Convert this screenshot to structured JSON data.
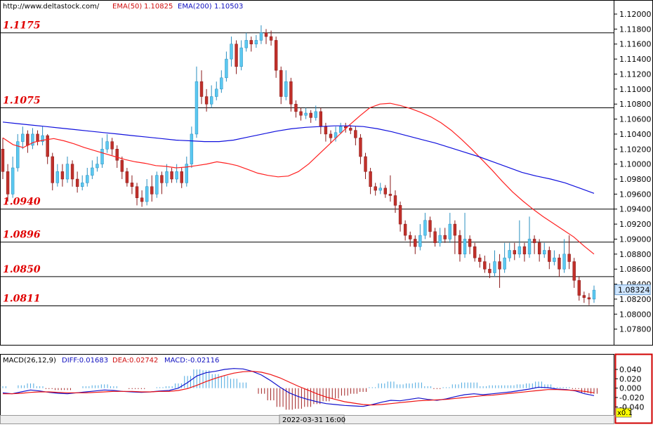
{
  "header": {
    "url": "http://www.deltastock.com/",
    "ema50_label": "EMA(50)",
    "ema50_value": "1.10825",
    "ema200_label": "EMA(200)",
    "ema200_value": "1.10503"
  },
  "macd_header": {
    "name": "MACD(26,12,9)",
    "diff": "DIFF:0.01683",
    "dea": "DEA:0.02742",
    "macd": "MACD:-0.02116"
  },
  "footer": {
    "timestamp": "2022-03-31 16:00",
    "zoom": "x0.1"
  },
  "current_price": "1.08324",
  "colors": {
    "up": "#5bc8f0",
    "down": "#c0302a",
    "ema50": "#ff2020",
    "ema200": "#1010dd",
    "diff": "#1010cc",
    "dea": "#ee1010",
    "level": "#e00000",
    "hist_pos": "#4aa8e0",
    "hist_neg": "#a02020"
  },
  "chart_data": [
    {
      "type": "candlestick",
      "ylim": [
        1.076,
        1.1215
      ],
      "y_ticks": [
        "1.12000",
        "1.11800",
        "1.11600",
        "1.11400",
        "1.11200",
        "1.11000",
        "1.10800",
        "1.10600",
        "1.10400",
        "1.10200",
        "1.10000",
        "1.09800",
        "1.09600",
        "1.09400",
        "1.09200",
        "1.09000",
        "1.08800",
        "1.08600",
        "1.08400",
        "1.08200",
        "1.08000",
        "1.07800"
      ],
      "levels": [
        "1.1175",
        "1.1075",
        "1.0940",
        "1.0896",
        "1.0850",
        "1.0811"
      ],
      "last_price": 1.08324,
      "series": [
        {
          "name": "EMA(50)",
          "values": [
            1.1035,
            1.1026,
            1.1022,
            1.1029,
            1.1032,
            1.1034,
            1.1031,
            1.1027,
            1.1022,
            1.1018,
            1.1014,
            1.101,
            1.1006,
            1.1003,
            1.1001,
            1.0998,
            1.0997,
            1.0995,
            1.0996,
            1.0998,
            1.1,
            1.1003,
            1.1001,
            1.0998,
            1.0993,
            1.0988,
            1.0985,
            1.0983,
            1.0984,
            1.099,
            1.1,
            1.1013,
            1.1026,
            1.1039,
            1.1052,
            1.1064,
            1.1075,
            1.108,
            1.1081,
            1.1078,
            1.1074,
            1.1069,
            1.1063,
            1.1055,
            1.1045,
            1.1033,
            1.102,
            1.1006,
            1.0992,
            1.0977,
            1.0963,
            1.0951,
            1.094,
            1.093,
            1.0921,
            1.0912,
            1.0903,
            1.0891,
            1.088
          ]
        },
        {
          "name": "EMA(200)",
          "values": [
            1.1056,
            1.1054,
            1.1052,
            1.105,
            1.1048,
            1.1046,
            1.1044,
            1.1042,
            1.104,
            1.1038,
            1.1036,
            1.1034,
            1.1032,
            1.1031,
            1.103,
            1.103,
            1.1032,
            1.1036,
            1.104,
            1.1044,
            1.1047,
            1.1049,
            1.105,
            1.1051,
            1.1051,
            1.105,
            1.1047,
            1.1043,
            1.1038,
            1.1033,
            1.1028,
            1.1022,
            1.1016,
            1.101,
            1.1003,
            1.0996,
            1.0989,
            1.0984,
            1.098,
            1.0975,
            1.0968,
            1.0961
          ]
        }
      ],
      "candles": [
        [
          1.102,
          1.099,
          1.1035,
          1.098
        ],
        [
          1.099,
          1.096,
          1.1,
          1.095
        ],
        [
          1.096,
          1.0995,
          1.101,
          1.0955
        ],
        [
          1.0995,
          1.103,
          1.104,
          1.099
        ],
        [
          1.103,
          1.104,
          1.105,
          1.102
        ],
        [
          1.104,
          1.1025,
          1.1045,
          1.1015
        ],
        [
          1.1025,
          1.104,
          1.1048,
          1.102
        ],
        [
          1.104,
          1.103,
          1.1045,
          1.1025
        ],
        [
          1.103,
          1.1038,
          1.105,
          1.1025
        ],
        [
          1.1038,
          1.101,
          1.104,
          1.1
        ],
        [
          1.101,
          1.0975,
          1.1015,
          1.0965
        ],
        [
          1.0975,
          1.099,
          1.1,
          1.097
        ],
        [
          1.099,
          1.098,
          1.1,
          1.097
        ],
        [
          1.098,
          1.1,
          1.101,
          1.0975
        ],
        [
          1.1,
          1.098,
          1.1005,
          1.097
        ],
        [
          1.098,
          1.097,
          1.099,
          1.0962
        ],
        [
          1.097,
          1.0975,
          1.0985,
          1.0965
        ],
        [
          1.0975,
          1.0985,
          1.0995,
          1.097
        ],
        [
          1.0985,
          1.0995,
          1.1005,
          1.098
        ],
        [
          1.0995,
          1.1,
          1.101,
          1.099
        ],
        [
          1.1,
          1.102,
          1.1035,
          1.0995
        ],
        [
          1.102,
          1.103,
          1.104,
          1.1015
        ],
        [
          1.103,
          1.102,
          1.1035,
          1.1012
        ],
        [
          1.102,
          1.1005,
          1.1025,
          1.0995
        ],
        [
          1.1005,
          1.099,
          1.101,
          1.098
        ],
        [
          1.099,
          1.0975,
          1.0995,
          1.097
        ],
        [
          1.0975,
          1.097,
          1.0985,
          1.096
        ],
        [
          1.097,
          1.0955,
          1.0975,
          1.0945
        ],
        [
          1.0955,
          1.095,
          1.0965,
          1.0943
        ],
        [
          1.095,
          1.097,
          1.098,
          1.0945
        ],
        [
          1.097,
          1.096,
          1.0985,
          1.095
        ],
        [
          1.096,
          1.0985,
          1.099,
          1.0955
        ],
        [
          1.0985,
          1.0975,
          1.099,
          1.096
        ],
        [
          1.0975,
          1.099,
          1.1,
          1.097
        ],
        [
          1.099,
          1.098,
          1.0995,
          1.0975
        ],
        [
          1.098,
          1.099,
          1.1,
          1.0975
        ],
        [
          1.099,
          1.0975,
          1.0995,
          1.0968
        ],
        [
          1.0975,
          1.1,
          1.101,
          1.097
        ],
        [
          1.1,
          1.104,
          1.105,
          1.0995
        ],
        [
          1.104,
          1.111,
          1.113,
          1.1035
        ],
        [
          1.111,
          1.109,
          1.1125,
          1.108
        ],
        [
          1.109,
          1.108,
          1.11,
          1.107
        ],
        [
          1.108,
          1.109,
          1.1105,
          1.1075
        ],
        [
          1.109,
          1.11,
          1.111,
          1.1085
        ],
        [
          1.11,
          1.1115,
          1.1125,
          1.1095
        ],
        [
          1.1115,
          1.114,
          1.115,
          1.111
        ],
        [
          1.114,
          1.116,
          1.117,
          1.113
        ],
        [
          1.116,
          1.113,
          1.1165,
          1.112
        ],
        [
          1.113,
          1.1155,
          1.1165,
          1.1125
        ],
        [
          1.1155,
          1.1165,
          1.1175,
          1.115
        ],
        [
          1.1165,
          1.116,
          1.117,
          1.115
        ],
        [
          1.116,
          1.1165,
          1.1172,
          1.1155
        ],
        [
          1.1165,
          1.1175,
          1.1185,
          1.116
        ],
        [
          1.1175,
          1.117,
          1.118,
          1.116
        ],
        [
          1.117,
          1.1165,
          1.1178,
          1.1158
        ],
        [
          1.1165,
          1.1125,
          1.117,
          1.1115
        ],
        [
          1.1125,
          1.109,
          1.113,
          1.108
        ],
        [
          1.109,
          1.111,
          1.1125,
          1.1085
        ],
        [
          1.111,
          1.108,
          1.1115,
          1.107
        ],
        [
          1.108,
          1.107,
          1.1085,
          1.1062
        ],
        [
          1.107,
          1.1065,
          1.1075,
          1.1058
        ],
        [
          1.1065,
          1.1068,
          1.1075,
          1.106
        ],
        [
          1.1068,
          1.1062,
          1.1072,
          1.1055
        ],
        [
          1.1062,
          1.107,
          1.1078,
          1.1058
        ],
        [
          1.107,
          1.105,
          1.1075,
          1.104
        ],
        [
          1.105,
          1.104,
          1.1055,
          1.103
        ],
        [
          1.104,
          1.1035,
          1.1045,
          1.1028
        ],
        [
          1.1035,
          1.1042,
          1.105,
          1.103
        ],
        [
          1.1042,
          1.105,
          1.1055,
          1.104
        ],
        [
          1.105,
          1.1048,
          1.1055,
          1.1042
        ],
        [
          1.1048,
          1.1045,
          1.1052,
          1.104
        ],
        [
          1.1045,
          1.1035,
          1.105,
          1.1025
        ],
        [
          1.1035,
          1.101,
          1.104,
          1.1
        ],
        [
          1.101,
          1.099,
          1.1015,
          1.098
        ],
        [
          1.099,
          1.097,
          1.0995,
          1.096
        ],
        [
          1.097,
          1.0965,
          1.0975,
          1.0958
        ],
        [
          1.0965,
          1.0968,
          1.0975,
          1.096
        ],
        [
          1.0968,
          1.096,
          1.0972,
          1.0955
        ],
        [
          1.096,
          1.0958,
          1.0985,
          1.095
        ],
        [
          1.0958,
          1.0945,
          1.0965,
          1.0935
        ],
        [
          1.0945,
          1.092,
          1.095,
          1.091
        ],
        [
          1.092,
          1.0905,
          1.0925,
          1.0898
        ],
        [
          1.0905,
          1.09,
          1.091,
          1.089
        ],
        [
          1.09,
          1.089,
          1.0905,
          1.088
        ],
        [
          1.089,
          1.0905,
          1.092,
          1.0885
        ],
        [
          1.0905,
          1.0925,
          1.0935,
          1.09
        ],
        [
          1.0925,
          1.091,
          1.093,
          1.0902
        ],
        [
          1.091,
          1.0895,
          1.0915,
          1.089
        ],
        [
          1.0895,
          1.0905,
          1.0915,
          1.089
        ],
        [
          1.0905,
          1.09,
          1.0915,
          1.0895
        ],
        [
          1.09,
          1.092,
          1.0935,
          1.0895
        ],
        [
          1.092,
          1.0905,
          1.0925,
          1.088
        ],
        [
          1.0905,
          1.088,
          1.0912,
          1.087
        ],
        [
          1.088,
          1.09,
          1.0935,
          1.0875
        ],
        [
          1.09,
          1.089,
          1.0905,
          1.088
        ],
        [
          1.089,
          1.0875,
          1.0895,
          1.087
        ],
        [
          1.0875,
          1.087,
          1.088,
          1.0862
        ],
        [
          1.087,
          1.086,
          1.0878,
          1.0855
        ],
        [
          1.086,
          1.0855,
          1.0868,
          1.0848
        ],
        [
          1.0855,
          1.087,
          1.0885,
          1.085
        ],
        [
          1.087,
          1.086,
          1.088,
          1.0835
        ],
        [
          1.086,
          1.0875,
          1.0895,
          1.0855
        ],
        [
          1.0875,
          1.0885,
          1.0895,
          1.087
        ],
        [
          1.0885,
          1.088,
          1.0895,
          1.0872
        ],
        [
          1.088,
          1.089,
          1.0925,
          1.0875
        ],
        [
          1.089,
          1.088,
          1.0895,
          1.087
        ],
        [
          1.088,
          1.09,
          1.093,
          1.0875
        ],
        [
          1.09,
          1.0895,
          1.0905,
          1.088
        ],
        [
          1.0895,
          1.088,
          1.09,
          1.087
        ],
        [
          1.088,
          1.0885,
          1.0895,
          1.0875
        ],
        [
          1.0885,
          1.087,
          1.089,
          1.086
        ],
        [
          1.087,
          1.0875,
          1.0885,
          1.0865
        ],
        [
          1.0875,
          1.086,
          1.088,
          1.085
        ],
        [
          1.086,
          1.088,
          1.09,
          1.0855
        ],
        [
          1.088,
          1.087,
          1.0905,
          1.086
        ],
        [
          1.087,
          1.0845,
          1.0875,
          1.0835
        ],
        [
          1.0845,
          1.0825,
          1.085,
          1.0818
        ],
        [
          1.0825,
          1.0822,
          1.083,
          1.0815
        ],
        [
          1.0822,
          1.082,
          1.0828,
          1.0812
        ],
        [
          1.082,
          1.0832,
          1.0838,
          1.0815
        ]
      ]
    },
    {
      "type": "macd",
      "ylim": [
        -0.056,
        0.07
      ],
      "y_ticks": [
        "0.040",
        "0.020",
        "0.000",
        "-0.020",
        "-0.040"
      ],
      "series": [
        {
          "name": "DIFF",
          "values": [
            -0.01,
            -0.012,
            -0.008,
            -0.004,
            -0.006,
            -0.009,
            -0.011,
            -0.012,
            -0.01,
            -0.008,
            -0.006,
            -0.004,
            -0.005,
            -0.007,
            -0.008,
            -0.009,
            -0.008,
            -0.006,
            -0.005,
            0.0,
            0.012,
            0.026,
            0.033,
            0.036,
            0.04,
            0.042,
            0.041,
            0.036,
            0.028,
            0.016,
            0.002,
            -0.01,
            -0.018,
            -0.024,
            -0.029,
            -0.033,
            -0.035,
            -0.037,
            -0.038,
            -0.039,
            -0.035,
            -0.03,
            -0.026,
            -0.027,
            -0.024,
            -0.021,
            -0.024,
            -0.026,
            -0.023,
            -0.018,
            -0.014,
            -0.012,
            -0.014,
            -0.012,
            -0.01,
            -0.008,
            -0.005,
            -0.002,
            0.002,
            0.001,
            -0.002,
            -0.003,
            -0.006,
            -0.012,
            -0.016
          ]
        },
        {
          "name": "DEA",
          "values": [
            -0.012,
            -0.012,
            -0.011,
            -0.009,
            -0.008,
            -0.008,
            -0.009,
            -0.01,
            -0.01,
            -0.01,
            -0.009,
            -0.008,
            -0.007,
            -0.007,
            -0.007,
            -0.008,
            -0.008,
            -0.007,
            -0.007,
            -0.005,
            -0.001,
            0.006,
            0.014,
            0.021,
            0.027,
            0.032,
            0.035,
            0.036,
            0.034,
            0.029,
            0.022,
            0.013,
            0.004,
            -0.004,
            -0.012,
            -0.019,
            -0.024,
            -0.029,
            -0.032,
            -0.035,
            -0.036,
            -0.035,
            -0.033,
            -0.031,
            -0.029,
            -0.027,
            -0.026,
            -0.025,
            -0.024,
            -0.022,
            -0.02,
            -0.018,
            -0.016,
            -0.015,
            -0.013,
            -0.011,
            -0.009,
            -0.007,
            -0.005,
            -0.003,
            -0.003,
            -0.004,
            -0.005,
            -0.007,
            -0.01
          ]
        }
      ]
    }
  ]
}
